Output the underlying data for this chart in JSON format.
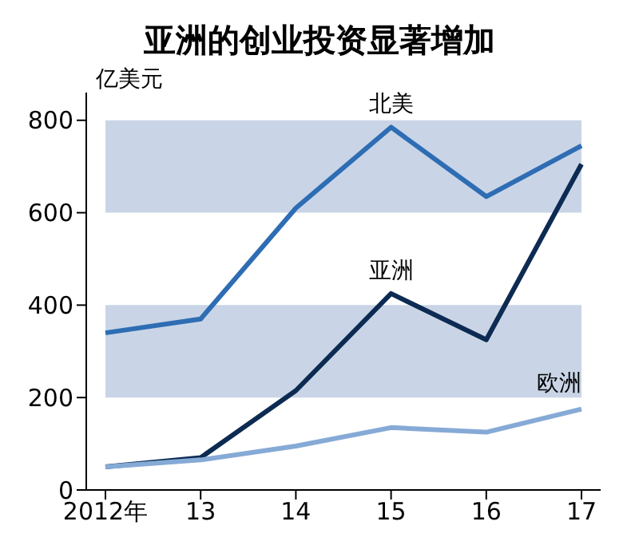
{
  "chart_data": {
    "type": "line",
    "title": "亚洲的创业投资显著增加",
    "ylabel": "亿美元",
    "categories": [
      "2012年",
      "13",
      "14",
      "15",
      "16",
      "17"
    ],
    "series": [
      {
        "name": "北美",
        "color": "#2e6db4",
        "values": [
          340,
          370,
          610,
          785,
          635,
          745
        ]
      },
      {
        "name": "亚洲",
        "color": "#0d2b52",
        "values": [
          50,
          70,
          215,
          425,
          325,
          705
        ]
      },
      {
        "name": "欧洲",
        "color": "#86aad6",
        "values": [
          50,
          65,
          95,
          135,
          125,
          175
        ]
      }
    ],
    "ylim": [
      0,
      860
    ],
    "yticks": [
      0,
      200,
      400,
      600,
      800
    ],
    "bands": [
      {
        "axis": "y",
        "from": 200,
        "to": 400,
        "color": "#c9d5e6"
      },
      {
        "axis": "y",
        "from": 600,
        "to": 800,
        "color": "#c9d5e6"
      }
    ],
    "grid": false,
    "marker": "none",
    "line_style": "solid"
  }
}
